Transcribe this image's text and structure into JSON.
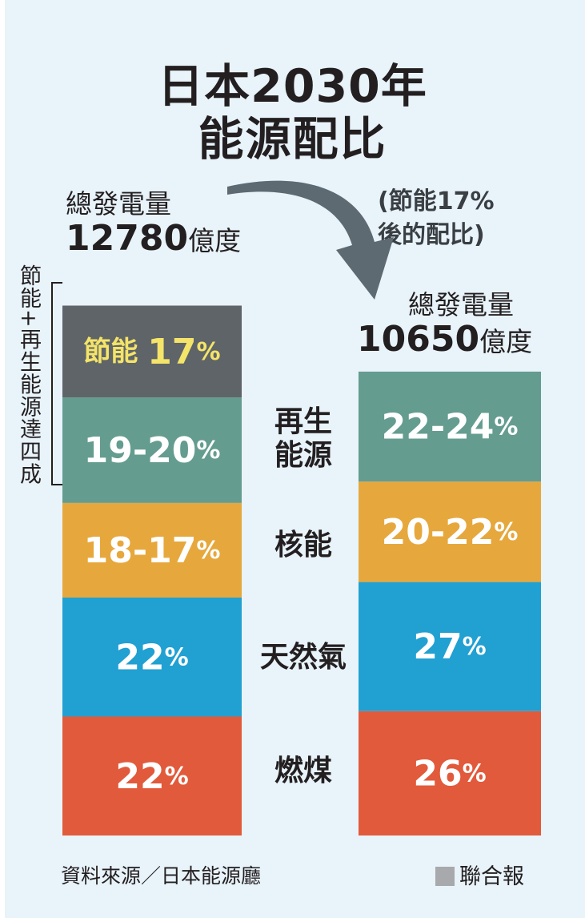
{
  "title_line1": "日本2030年",
  "title_line2": "能源配比",
  "left_total": {
    "label": "總發電量",
    "value": "12780",
    "unit": "億度"
  },
  "right_total": {
    "label": "總發電量",
    "value": "10650",
    "unit": "億度"
  },
  "right_note_line1": "(節能17%",
  "right_note_line2": "後的配比)",
  "side_note": "節能+再生能源達四成",
  "source": "資料來源／日本能源廳",
  "brand": "聯合報",
  "colors": {
    "saving": "#5f6468",
    "renewable": "#659c90",
    "nuclear": "#e6a83d",
    "gas": "#21a0d2",
    "coal": "#e15a3b",
    "saving_text": "#f4e469",
    "arrow": "#5d6a72"
  },
  "chart_data": [
    {
      "type": "bar",
      "stacked": true,
      "total_label": "總發電量 12780億度",
      "categories": [
        "節能",
        "再生能源",
        "核能",
        "天然氣",
        "燃煤"
      ],
      "labels": [
        "節能 17%",
        "19-20%",
        "18-17%",
        "22%",
        "22%"
      ],
      "values": [
        17,
        19.5,
        17.5,
        22,
        22
      ],
      "unit": "%"
    },
    {
      "type": "bar",
      "stacked": true,
      "total_label": "總發電量 10650億度",
      "categories": [
        "再生能源",
        "核能",
        "天然氣",
        "燃煤"
      ],
      "labels": [
        "22-24%",
        "20-22%",
        "27%",
        "26%"
      ],
      "values": [
        23,
        21,
        27,
        26
      ],
      "unit": "%"
    }
  ],
  "category_labels": [
    {
      "line1": "再生",
      "line2": "能源"
    },
    {
      "line1": "核能",
      "line2": ""
    },
    {
      "line1": "天然氣",
      "line2": ""
    },
    {
      "line1": "燃煤",
      "line2": ""
    }
  ]
}
